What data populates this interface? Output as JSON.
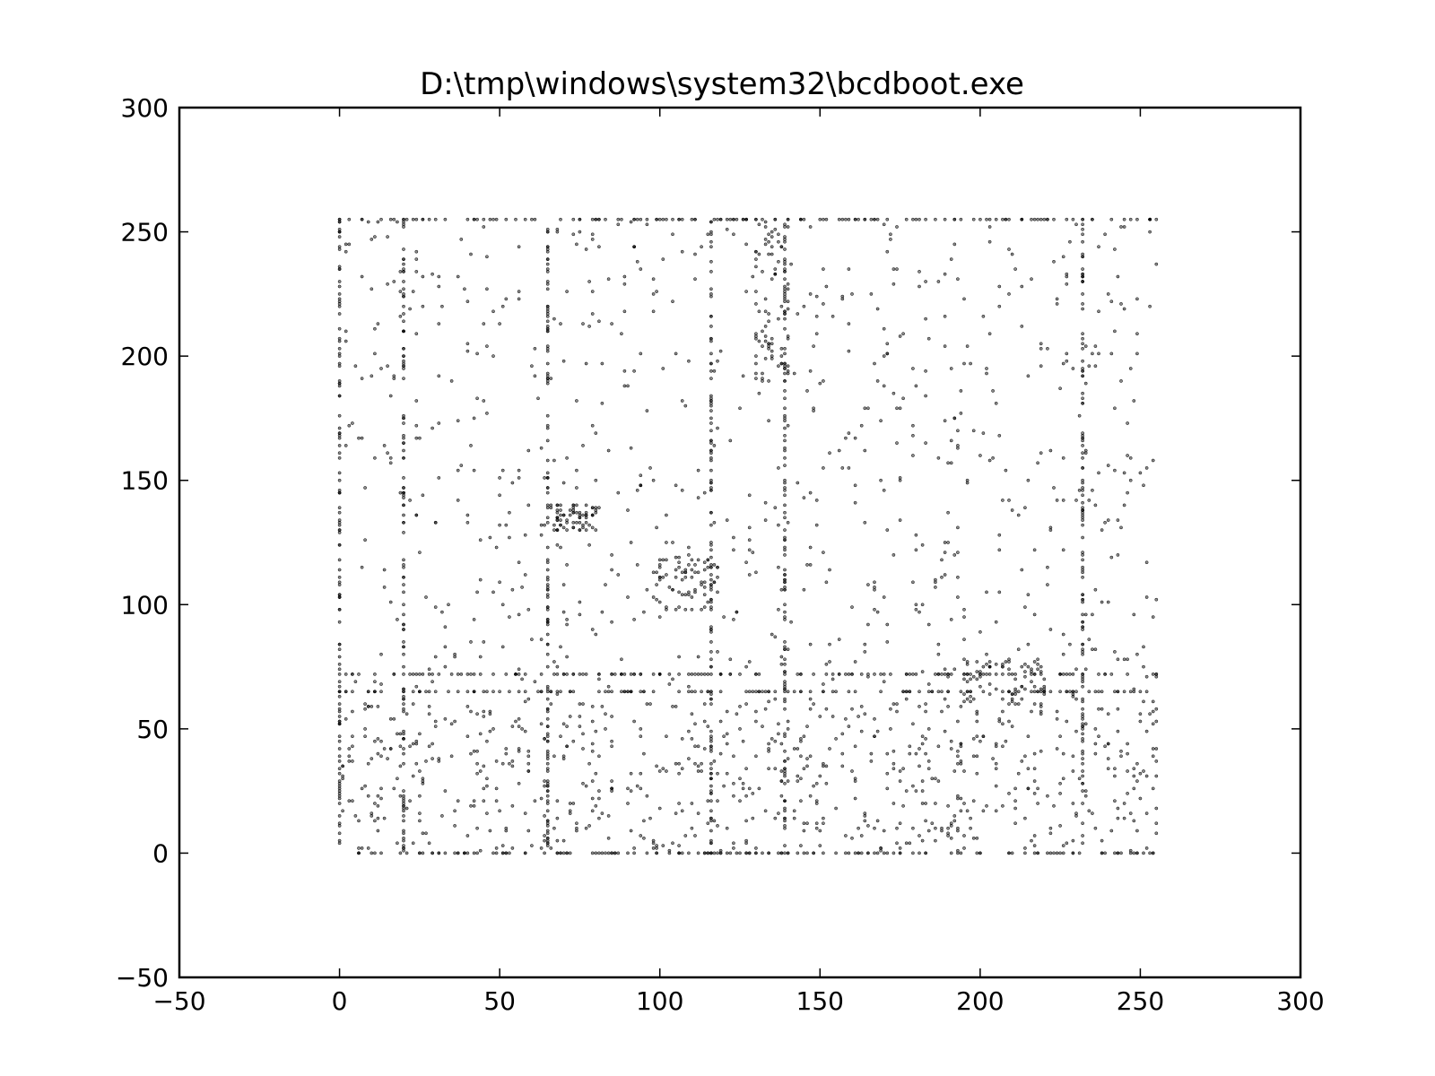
{
  "chart_data": {
    "type": "scatter",
    "title": "D:\\tmp\\windows\\system32\\bcdboot.exe",
    "xlabel": "",
    "ylabel": "",
    "xlim": [
      -50,
      300
    ],
    "ylim": [
      -50,
      300
    ],
    "xticks": [
      -50,
      0,
      50,
      100,
      150,
      200,
      250,
      300
    ],
    "yticks": [
      -50,
      0,
      50,
      100,
      150,
      200,
      250,
      300
    ],
    "xtick_labels": [
      "−50",
      "0",
      "50",
      "100",
      "150",
      "200",
      "250",
      "300"
    ],
    "ytick_labels": [
      "−50",
      "0",
      "50",
      "100",
      "150",
      "200",
      "250",
      "300"
    ],
    "grid": false,
    "legend": "none",
    "marker_color": "#000000",
    "point_value_range": [
      0,
      255
    ],
    "dense_rows_y": [
      0,
      65,
      72,
      255
    ],
    "dense_columns_x": [
      0,
      20,
      65,
      116,
      139,
      232
    ],
    "clusters": [
      {
        "x_range": [
          98,
          118
        ],
        "y_range": [
          98,
          120
        ]
      },
      {
        "x_range": [
          130,
          140
        ],
        "y_range": [
          190,
          255
        ]
      },
      {
        "x_range": [
          64,
          80
        ],
        "y_range": [
          130,
          140
        ]
      },
      {
        "x_range": [
          195,
          220
        ],
        "y_range": [
          60,
          78
        ]
      }
    ]
  }
}
